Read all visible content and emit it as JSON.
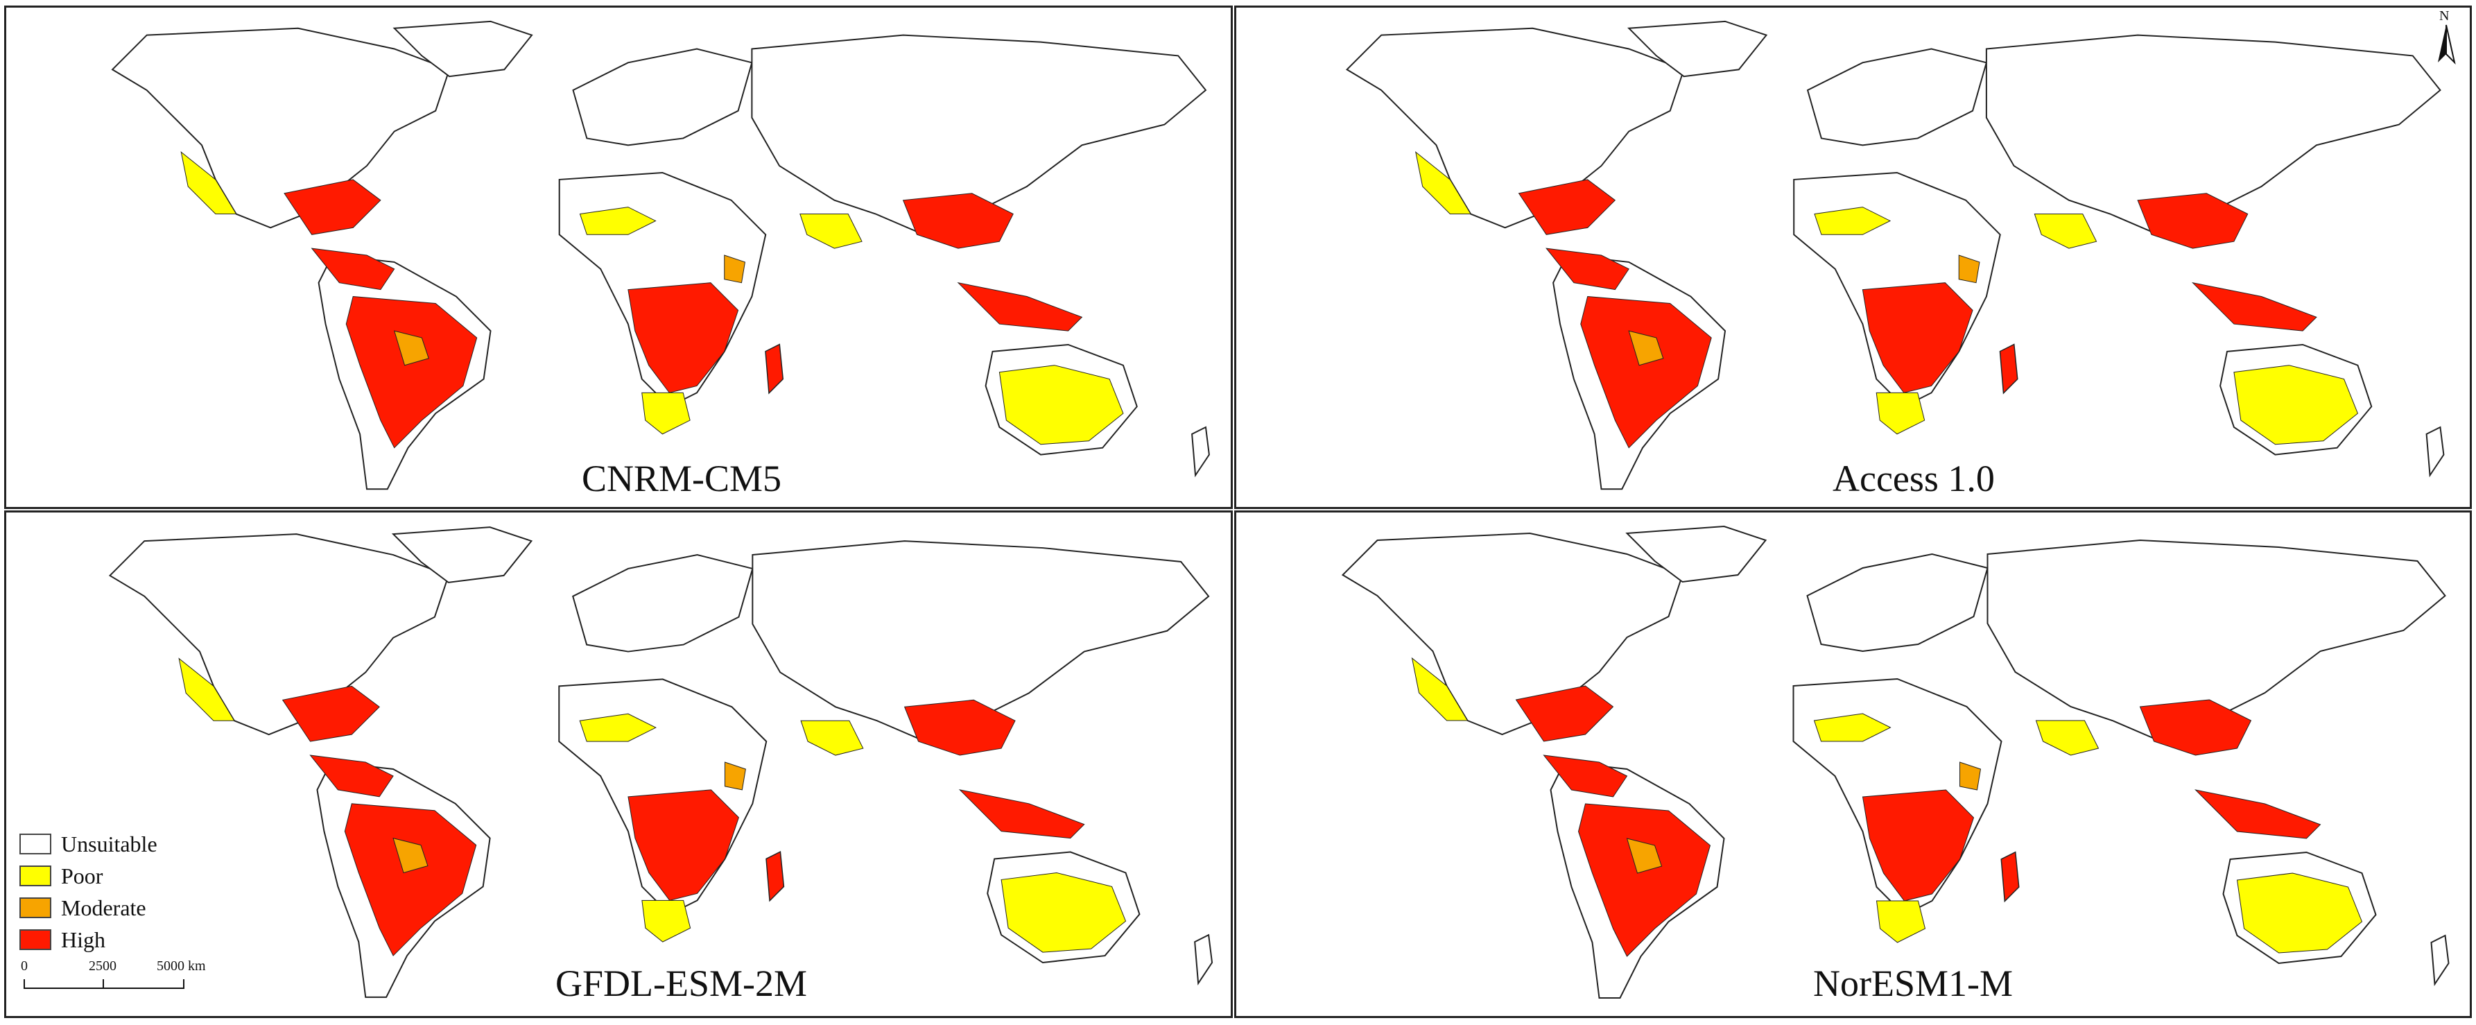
{
  "colors": {
    "unsuitable": "#ffffff",
    "poor": "#ffff00",
    "moderate": "#f7a400",
    "high": "#ff1a00",
    "outline": "#222222"
  },
  "panels": [
    {
      "id": "cnrm",
      "title": "CNRM-CM5"
    },
    {
      "id": "access",
      "title": "Access 1.0"
    },
    {
      "id": "gfdl",
      "title": "GFDL-ESM-2M"
    },
    {
      "id": "noresm",
      "title": "NorESM1-M"
    }
  ],
  "legend": {
    "items": [
      {
        "label": "Unsuitable",
        "color": "#ffffff"
      },
      {
        "label": "Poor",
        "color": "#ffff00"
      },
      {
        "label": "Moderate",
        "color": "#f7a400"
      },
      {
        "label": "High",
        "color": "#ff1a00"
      }
    ]
  },
  "scalebar": {
    "labels": [
      "0",
      "2500",
      "5000 km"
    ]
  },
  "north_arrow": {
    "label": "N",
    "icon": "north-arrow-icon"
  }
}
